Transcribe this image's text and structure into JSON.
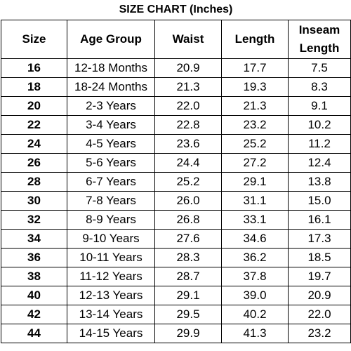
{
  "title": "SIZE CHART (Inches)",
  "table": {
    "header": [
      "Size",
      "Age Group",
      "Waist",
      "Length",
      "Inseam Length"
    ],
    "rows": [
      [
        "16",
        "12-18 Months",
        "20.9",
        "17.7",
        "7.5"
      ],
      [
        "18",
        "18-24 Months",
        "21.3",
        "19.3",
        "8.3"
      ],
      [
        "20",
        "2-3 Years",
        "22.0",
        "21.3",
        "9.1"
      ],
      [
        "22",
        "3-4 Years",
        "22.8",
        "23.2",
        "10.2"
      ],
      [
        "24",
        "4-5 Years",
        "23.6",
        "25.2",
        "11.2"
      ],
      [
        "26",
        "5-6 Years",
        "24.4",
        "27.2",
        "12.4"
      ],
      [
        "28",
        "6-7 Years",
        "25.2",
        "29.1",
        "13.8"
      ],
      [
        "30",
        "7-8 Years",
        "26.0",
        "31.1",
        "15.0"
      ],
      [
        "32",
        "8-9 Years",
        "26.8",
        "33.1",
        "16.1"
      ],
      [
        "34",
        "9-10 Years",
        "27.6",
        "34.6",
        "17.3"
      ],
      [
        "36",
        "10-11 Years",
        "28.3",
        "36.2",
        "18.5"
      ],
      [
        "38",
        "11-12 Years",
        "28.7",
        "37.8",
        "19.7"
      ],
      [
        "40",
        "12-13 Years",
        "29.1",
        "39.0",
        "20.9"
      ],
      [
        "42",
        "13-14 Years",
        "29.5",
        "40.2",
        "22.0"
      ],
      [
        "44",
        "14-15 Years",
        "29.9",
        "41.3",
        "23.2"
      ]
    ]
  }
}
